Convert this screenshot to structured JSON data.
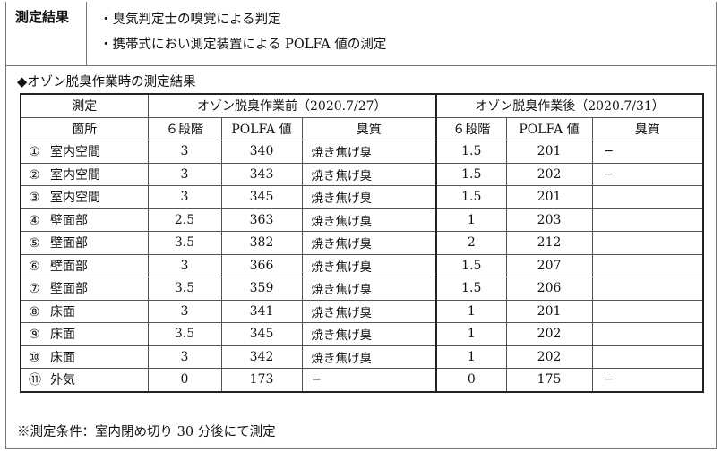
{
  "method": {
    "label": "測定結果",
    "items": [
      "・臭気判定士の嗅覚による判定",
      "・携帯式におい測定装置による POLFA 値の測定"
    ]
  },
  "section_title": "◆オゾン脱臭作業時の測定結果",
  "table": {
    "header": {
      "location_top": "測定",
      "location_bottom": "箇所",
      "before": "オゾン脱臭作業前（2020.7/27）",
      "after": "オゾン脱臭作業後（2020.7/31）",
      "grade": "６段階",
      "polfa": "POLFA 値",
      "quality": "臭質"
    },
    "rows": [
      {
        "num": "①",
        "place": "室内空間",
        "b_grade": "3",
        "b_polfa": "340",
        "b_quality": "焼き焦げ臭",
        "a_grade": "1.5",
        "a_polfa": "201",
        "a_quality": "−"
      },
      {
        "num": "②",
        "place": "室内空間",
        "b_grade": "3",
        "b_polfa": "343",
        "b_quality": "焼き焦げ臭",
        "a_grade": "1.5",
        "a_polfa": "202",
        "a_quality": "−"
      },
      {
        "num": "③",
        "place": "室内空間",
        "b_grade": "3",
        "b_polfa": "345",
        "b_quality": "焼き焦げ臭",
        "a_grade": "1.5",
        "a_polfa": "201",
        "a_quality": ""
      },
      {
        "num": "④",
        "place": "壁面部",
        "b_grade": "2.5",
        "b_polfa": "363",
        "b_quality": "焼き焦げ臭",
        "a_grade": "1",
        "a_polfa": "203",
        "a_quality": ""
      },
      {
        "num": "⑤",
        "place": "壁面部",
        "b_grade": "3.5",
        "b_polfa": "382",
        "b_quality": "焼き焦げ臭",
        "a_grade": "2",
        "a_polfa": "212",
        "a_quality": ""
      },
      {
        "num": "⑥",
        "place": "壁面部",
        "b_grade": "3",
        "b_polfa": "366",
        "b_quality": "焼き焦げ臭",
        "a_grade": "1.5",
        "a_polfa": "207",
        "a_quality": ""
      },
      {
        "num": "⑦",
        "place": "壁面部",
        "b_grade": "3.5",
        "b_polfa": "359",
        "b_quality": "焼き焦げ臭",
        "a_grade": "1.5",
        "a_polfa": "206",
        "a_quality": ""
      },
      {
        "num": "⑧",
        "place": "床面",
        "b_grade": "3",
        "b_polfa": "341",
        "b_quality": "焼き焦げ臭",
        "a_grade": "1",
        "a_polfa": "201",
        "a_quality": ""
      },
      {
        "num": "⑨",
        "place": "床面",
        "b_grade": "3.5",
        "b_polfa": "345",
        "b_quality": "焼き焦げ臭",
        "a_grade": "1",
        "a_polfa": "202",
        "a_quality": ""
      },
      {
        "num": "⑩",
        "place": "床面",
        "b_grade": "3",
        "b_polfa": "342",
        "b_quality": "焼き焦げ臭",
        "a_grade": "1",
        "a_polfa": "202",
        "a_quality": ""
      },
      {
        "num": "⑪",
        "place": "外気",
        "b_grade": "0",
        "b_polfa": "173",
        "b_quality": "−",
        "a_grade": "0",
        "a_polfa": "175",
        "a_quality": "−"
      }
    ]
  },
  "note": "※測定条件：室内閉め切り 30 分後にて測定"
}
